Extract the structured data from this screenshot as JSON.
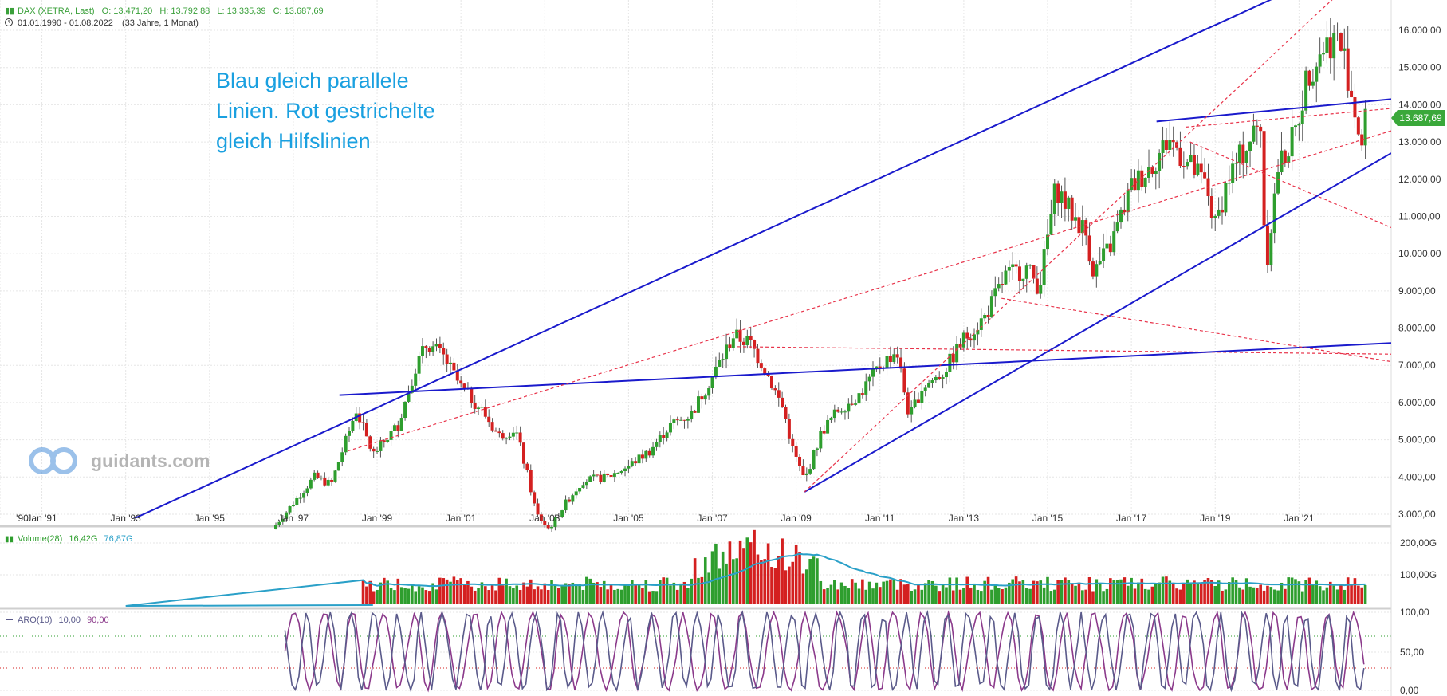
{
  "header": {
    "symbol": "DAX (XETRA, Last)",
    "open": "O: 13.471,20",
    "high": "H: 13.792,88",
    "low": "L: 13.335,39",
    "close": "C: 13.687,69",
    "range": "01.01.1990 - 01.08.2022",
    "duration": "(33 Jahre, 1 Monat)"
  },
  "annotation": [
    "Blau gleich parallele",
    "Linien. Rot gestrichelte",
    "gleich Hilfslinien"
  ],
  "watermark": "guidants.com",
  "price_tag": "13.687,69",
  "colors": {
    "up": "#2e9e2e",
    "down": "#d42020",
    "blue_line": "#1a1acc",
    "red_dash": "#e8334a",
    "annotation": "#1aa0e0",
    "volume_ma": "#2aa0c8",
    "aroon_up": "#8b3a8b",
    "aroon_down": "#5a5a8a",
    "header_green": "#3aa03a"
  },
  "x_ticks": [
    "'90",
    "Jan '91",
    "Jan '93",
    "Jan '95",
    "Jan '97",
    "Jan '99",
    "Jan '01",
    "Jan '03",
    "Jan '05",
    "Jan '07",
    "Jan '09",
    "Jan '11",
    "Jan '13",
    "Jan '15",
    "Jan '17",
    "Jan '19",
    "Jan '21"
  ],
  "volume_panel": {
    "label": "Volume(28)",
    "v1": "16,42G",
    "v2": "76,87G",
    "ticks": [
      "200,00G",
      "100,00G"
    ]
  },
  "aroon_panel": {
    "label": "ARO(10)",
    "v1": "10,00",
    "v2": "90,00",
    "ticks": [
      "100,00",
      "50,00",
      "0,00"
    ]
  },
  "chart_data": {
    "type": "candlestick",
    "title": "DAX (XETRA, Last)",
    "y_ticks": [
      "3.000,00",
      "4.000,00",
      "5.000,00",
      "6.000,00",
      "7.000,00",
      "8.000,00",
      "9.000,00",
      "10.000,00",
      "11.000,00",
      "12.000,00",
      "13.000,00",
      "14.000,00",
      "15.000,00",
      "16.000,00"
    ],
    "ylim": [
      2500,
      16700
    ],
    "xlim": [
      1990.0,
      2023.2
    ],
    "close_path": [
      [
        1996.5,
        2600
      ],
      [
        1997.0,
        3300
      ],
      [
        1997.5,
        4000
      ],
      [
        1997.9,
        3800
      ],
      [
        1998.5,
        5800
      ],
      [
        1998.9,
        4600
      ],
      [
        1999.5,
        5400
      ],
      [
        1999.9,
        6900
      ],
      [
        2000.2,
        7600
      ],
      [
        2000.6,
        7200
      ],
      [
        2001.0,
        6400
      ],
      [
        2001.5,
        5800
      ],
      [
        2001.9,
        5100
      ],
      [
        2002.3,
        5300
      ],
      [
        2002.6,
        4000
      ],
      [
        2002.8,
        3000
      ],
      [
        2003.1,
        2600
      ],
      [
        2003.5,
        3300
      ],
      [
        2003.9,
        3900
      ],
      [
        2004.5,
        4000
      ],
      [
        2005.0,
        4300
      ],
      [
        2005.5,
        4700
      ],
      [
        2006.0,
        5400
      ],
      [
        2006.5,
        5700
      ],
      [
        2007.0,
        6700
      ],
      [
        2007.5,
        7800
      ],
      [
        2007.9,
        7600
      ],
      [
        2008.3,
        6800
      ],
      [
        2008.7,
        5800
      ],
      [
        2008.9,
        4800
      ],
      [
        2009.2,
        3900
      ],
      [
        2009.6,
        5200
      ],
      [
        2010.0,
        5800
      ],
      [
        2010.5,
        6200
      ],
      [
        2011.0,
        7000
      ],
      [
        2011.4,
        7400
      ],
      [
        2011.7,
        5600
      ],
      [
        2012.0,
        6400
      ],
      [
        2012.5,
        6800
      ],
      [
        2013.0,
        7700
      ],
      [
        2013.5,
        8300
      ],
      [
        2014.0,
        9400
      ],
      [
        2014.5,
        9600
      ],
      [
        2014.8,
        9100
      ],
      [
        2015.2,
        11800
      ],
      [
        2015.5,
        11200
      ],
      [
        2015.9,
        10600
      ],
      [
        2016.1,
        9500
      ],
      [
        2016.5,
        10200
      ],
      [
        2017.0,
        11800
      ],
      [
        2017.5,
        12400
      ],
      [
        2017.9,
        13100
      ],
      [
        2018.3,
        12500
      ],
      [
        2018.8,
        11800
      ],
      [
        2018.99,
        10700
      ],
      [
        2019.3,
        12000
      ],
      [
        2019.9,
        13200
      ],
      [
        2020.1,
        13500
      ],
      [
        2020.2,
        9500
      ],
      [
        2020.5,
        12300
      ],
      [
        2020.9,
        13200
      ],
      [
        2021.2,
        14800
      ],
      [
        2021.6,
        15600
      ],
      [
        2021.9,
        15800
      ],
      [
        2022.1,
        15200
      ],
      [
        2022.3,
        14000
      ],
      [
        2022.5,
        12900
      ],
      [
        2022.6,
        13687
      ]
    ],
    "blue_lines": [
      {
        "from": [
          1990.0,
          1240
        ],
        "to": [
          2023.2,
          18300
        ]
      },
      {
        "from": [
          2009.2,
          3600
        ],
        "to": [
          2023.2,
          12700
        ]
      },
      {
        "from": [
          1998.1,
          6200
        ],
        "to": [
          2023.2,
          7600
        ]
      },
      {
        "from": [
          2017.6,
          13550
        ],
        "to": [
          2023.2,
          14150
        ]
      }
    ],
    "red_dashed_lines": [
      {
        "from": [
          2009.2,
          3600
        ],
        "to": [
          2023.2,
          18300
        ]
      },
      {
        "from": [
          1998.3,
          4700
        ],
        "to": [
          2023.2,
          13300
        ]
      },
      {
        "from": [
          2007.6,
          7500
        ],
        "to": [
          2023.2,
          7300
        ]
      },
      {
        "from": [
          2013.9,
          8800
        ],
        "to": [
          2023.2,
          7100
        ]
      },
      {
        "from": [
          2018.4,
          13000
        ],
        "to": [
          2023.2,
          10700
        ]
      },
      {
        "from": [
          2018.3,
          13400
        ],
        "to": [
          2023.2,
          13900
        ]
      }
    ]
  }
}
